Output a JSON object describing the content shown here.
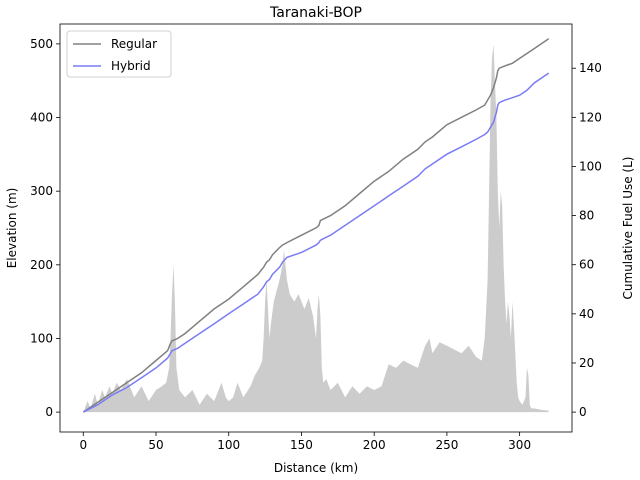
{
  "chart_data": {
    "type": "line",
    "title": "Taranaki-BOP",
    "xlabel": "Distance (km)",
    "ylabel": "Elevation (m)",
    "y2label": "Cumulative Fuel Use (L)",
    "xlim": [
      -16,
      336
    ],
    "ylim": [
      -27,
      527
    ],
    "y2lim": [
      -8.1,
      158
    ],
    "xticks": [
      0,
      50,
      100,
      150,
      200,
      250,
      300
    ],
    "yticks": [
      0,
      100,
      200,
      300,
      400,
      500
    ],
    "y2ticks": [
      0,
      20,
      40,
      60,
      80,
      100,
      120,
      140
    ],
    "grid": false,
    "legend_position": "top-left",
    "legend": [
      {
        "name": "Regular",
        "color": "#808080"
      },
      {
        "name": "Hybrid",
        "color": "#7b7bf5"
      }
    ],
    "elevation": {
      "color": "#cccccc",
      "axis": "left",
      "x": [
        0,
        3,
        5,
        8,
        10,
        13,
        15,
        18,
        20,
        23,
        26,
        30,
        35,
        40,
        45,
        50,
        54,
        57,
        59,
        60,
        61,
        62,
        63,
        64,
        66,
        70,
        75,
        80,
        85,
        90,
        95,
        98,
        100,
        103,
        106,
        110,
        115,
        118,
        121,
        123,
        124,
        125,
        126,
        127,
        128,
        129,
        131,
        133,
        135,
        137,
        138,
        140,
        142,
        145,
        148,
        150,
        152,
        155,
        158,
        160,
        161,
        162,
        163,
        164,
        165,
        167,
        170,
        175,
        180,
        185,
        190,
        195,
        200,
        205,
        210,
        215,
        220,
        225,
        230,
        235,
        238,
        240,
        245,
        250,
        255,
        260,
        265,
        270,
        274,
        276,
        278,
        279,
        280,
        281,
        282,
        283,
        284,
        285,
        286,
        287,
        288,
        289,
        290,
        291,
        292,
        293,
        294,
        295,
        296,
        297,
        298,
        299,
        300,
        302,
        304,
        305,
        306,
        307,
        308,
        310,
        315,
        320
      ],
      "y": [
        0,
        15,
        5,
        25,
        10,
        30,
        20,
        35,
        25,
        40,
        30,
        45,
        20,
        35,
        15,
        30,
        35,
        40,
        60,
        100,
        160,
        200,
        150,
        60,
        30,
        20,
        30,
        10,
        25,
        15,
        40,
        20,
        15,
        20,
        40,
        20,
        35,
        50,
        60,
        70,
        100,
        150,
        180,
        140,
        100,
        120,
        150,
        165,
        180,
        200,
        220,
        180,
        160,
        150,
        160,
        150,
        140,
        155,
        130,
        100,
        140,
        160,
        130,
        60,
        40,
        45,
        30,
        40,
        20,
        35,
        25,
        35,
        30,
        35,
        65,
        60,
        70,
        65,
        60,
        90,
        100,
        80,
        95,
        90,
        85,
        80,
        90,
        75,
        70,
        100,
        180,
        300,
        420,
        480,
        500,
        450,
        400,
        300,
        250,
        300,
        280,
        200,
        150,
        120,
        150,
        130,
        100,
        150,
        120,
        80,
        40,
        20,
        15,
        10,
        20,
        60,
        50,
        10,
        5,
        5,
        3,
        2
      ]
    },
    "series": [
      {
        "name": "Regular",
        "axis": "right",
        "color": "#808080",
        "x": [
          0,
          10,
          20,
          30,
          40,
          50,
          58,
          60,
          61,
          65,
          70,
          80,
          90,
          100,
          110,
          120,
          124,
          126,
          128,
          130,
          135,
          137,
          140,
          150,
          160,
          162,
          163,
          170,
          180,
          190,
          200,
          210,
          220,
          230,
          235,
          240,
          250,
          260,
          270,
          276,
          278,
          280,
          282,
          284,
          285,
          286,
          290,
          295,
          300,
          305,
          310,
          320
        ],
        "y": [
          0,
          4,
          8,
          12,
          16,
          21,
          25,
          28,
          29,
          30,
          32,
          37,
          42,
          46,
          51,
          56,
          59,
          61,
          62,
          64,
          67,
          68,
          69,
          72,
          75,
          76,
          78,
          80,
          84,
          89,
          94,
          98,
          103,
          107,
          110,
          112,
          117,
          120,
          123,
          125,
          127,
          129,
          132,
          136,
          139,
          140,
          141,
          142,
          144,
          146,
          148,
          152
        ]
      },
      {
        "name": "Hybrid",
        "axis": "right",
        "color": "#7b7bf5",
        "x": [
          0,
          10,
          20,
          30,
          40,
          50,
          58,
          60,
          61,
          65,
          70,
          80,
          90,
          100,
          110,
          120,
          124,
          126,
          128,
          130,
          135,
          137,
          140,
          150,
          160,
          162,
          163,
          170,
          180,
          190,
          200,
          210,
          220,
          230,
          235,
          240,
          250,
          260,
          270,
          276,
          278,
          280,
          282,
          284,
          285,
          286,
          290,
          295,
          300,
          305,
          310,
          320
        ],
        "y": [
          0,
          3,
          7,
          10,
          14,
          18,
          22,
          24,
          25,
          26,
          28,
          32,
          36,
          40,
          44,
          48,
          51,
          53,
          54,
          56,
          59,
          61,
          63,
          65,
          68,
          69,
          70,
          72,
          76,
          80,
          84,
          88,
          92,
          96,
          99,
          101,
          105,
          108,
          111,
          113,
          114,
          116,
          118,
          122,
          125,
          126,
          127,
          128,
          129,
          131,
          134,
          138
        ]
      }
    ]
  }
}
